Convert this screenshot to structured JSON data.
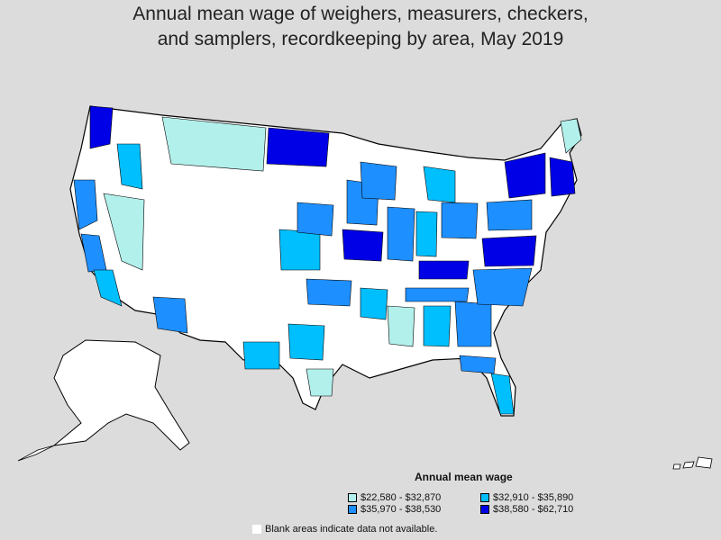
{
  "title_line1": "Annual mean wage of weighers, measurers, checkers,",
  "title_line2": "and samplers, recordkeeping by area, May 2019",
  "legend": {
    "title": "Annual mean wage",
    "items": [
      {
        "label": "$22,580 - $32,870",
        "color": "#b2f0ec"
      },
      {
        "label": "$32,910 - $35,890",
        "color": "#00bfff"
      },
      {
        "label": "$35,970 - $38,530",
        "color": "#1e8fff"
      },
      {
        "label": "$38,580 - $62,710",
        "color": "#0000e6"
      }
    ]
  },
  "note": "Blank areas indicate data not available.",
  "colors": {
    "background": "#dcdcdc",
    "blank": "#ffffff",
    "border": "#000000"
  }
}
